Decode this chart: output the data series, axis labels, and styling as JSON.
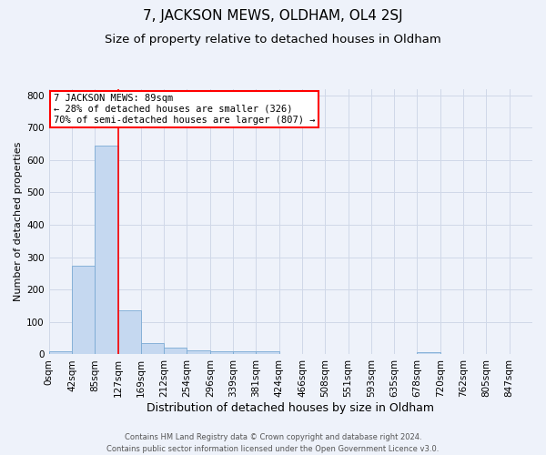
{
  "title": "7, JACKSON MEWS, OLDHAM, OL4 2SJ",
  "subtitle": "Size of property relative to detached houses in Oldham",
  "xlabel": "Distribution of detached houses by size in Oldham",
  "ylabel": "Number of detached properties",
  "bin_labels": [
    "0sqm",
    "42sqm",
    "85sqm",
    "127sqm",
    "169sqm",
    "212sqm",
    "254sqm",
    "296sqm",
    "339sqm",
    "381sqm",
    "424sqm",
    "466sqm",
    "508sqm",
    "551sqm",
    "593sqm",
    "635sqm",
    "678sqm",
    "720sqm",
    "762sqm",
    "805sqm",
    "847sqm"
  ],
  "bar_heights": [
    10,
    275,
    645,
    137,
    35,
    20,
    13,
    11,
    11,
    10,
    0,
    0,
    0,
    0,
    0,
    0,
    8,
    0,
    0,
    0,
    0
  ],
  "bar_color": "#c5d8f0",
  "bar_edge_color": "#7aaad4",
  "grid_color": "#d0d8e8",
  "annotation_text": "7 JACKSON MEWS: 89sqm\n← 28% of detached houses are smaller (326)\n70% of semi-detached houses are larger (807) →",
  "annotation_box_color": "white",
  "annotation_box_edge": "red",
  "vline_color": "red",
  "vline_x": 2.0,
  "footer_text": "Contains HM Land Registry data © Crown copyright and database right 2024.\nContains public sector information licensed under the Open Government Licence v3.0.",
  "ylim": [
    0,
    820
  ],
  "background_color": "#eef2fa",
  "title_fontsize": 11,
  "subtitle_fontsize": 9.5,
  "ylabel_fontsize": 8,
  "xlabel_fontsize": 9,
  "tick_fontsize": 7.5,
  "footer_fontsize": 6,
  "annotation_fontsize": 7.5
}
